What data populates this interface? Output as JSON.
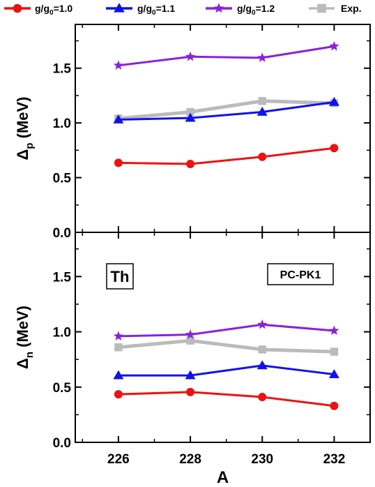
{
  "chart_data": {
    "type": "line",
    "x": [
      226,
      228,
      230,
      232
    ],
    "xlabel": "A",
    "xticks": [
      "226",
      "228",
      "230",
      "232"
    ],
    "xlim": [
      224.8,
      233.0
    ],
    "legend": {
      "placement": "top",
      "entries": [
        {
          "key": "g10",
          "sym": "g/g",
          "sub": "0",
          "val": "=1.0"
        },
        {
          "key": "g11",
          "sym": "g/g",
          "sub": "0",
          "val": "=1.1"
        },
        {
          "key": "g12",
          "sym": "g/g",
          "sub": "0",
          "val": "=1.2"
        },
        {
          "key": "exp",
          "text": "Exp."
        }
      ]
    },
    "series_styles": {
      "g10": {
        "color": "#ee1111",
        "marker": "circle"
      },
      "g11": {
        "color": "#1111ee",
        "marker": "triangle"
      },
      "g12": {
        "color": "#8822dd",
        "marker": "star"
      },
      "exp": {
        "color": "#bbbbbb",
        "marker": "square"
      }
    },
    "panels": [
      {
        "id": "top",
        "ylabel": {
          "main": "Δ",
          "sub": "p",
          "unit": "(MeV)"
        },
        "ylim": [
          0.0,
          1.9
        ],
        "yticks": [
          "0.0",
          "0.5",
          "1.0",
          "1.5"
        ],
        "series": [
          {
            "key": "g10",
            "values": [
              0.635,
              0.625,
              0.69,
              0.77
            ]
          },
          {
            "key": "g11",
            "values": [
              1.03,
              1.045,
              1.1,
              1.19
            ]
          },
          {
            "key": "g12",
            "values": [
              1.525,
              1.605,
              1.595,
              1.7
            ]
          },
          {
            "key": "exp",
            "values": [
              1.04,
              1.1,
              1.2,
              1.18
            ]
          }
        ]
      },
      {
        "id": "bottom",
        "ylabel": {
          "main": "Δ",
          "sub": "n",
          "unit": "(MeV)"
        },
        "ylim": [
          0.0,
          1.9
        ],
        "yticks": [
          "0.0",
          "0.5",
          "1.0",
          "1.5"
        ],
        "series": [
          {
            "key": "g10",
            "values": [
              0.435,
              0.455,
              0.41,
              0.33
            ]
          },
          {
            "key": "g11",
            "values": [
              0.605,
              0.605,
              0.695,
              0.615
            ]
          },
          {
            "key": "g12",
            "values": [
              0.96,
              0.975,
              1.065,
              1.01
            ]
          },
          {
            "key": "exp",
            "values": [
              0.86,
              0.92,
              0.84,
              0.82
            ]
          }
        ],
        "annotations": [
          {
            "text": "Th",
            "box": true
          },
          {
            "text": "PC-PK1",
            "box": true
          }
        ]
      }
    ]
  }
}
